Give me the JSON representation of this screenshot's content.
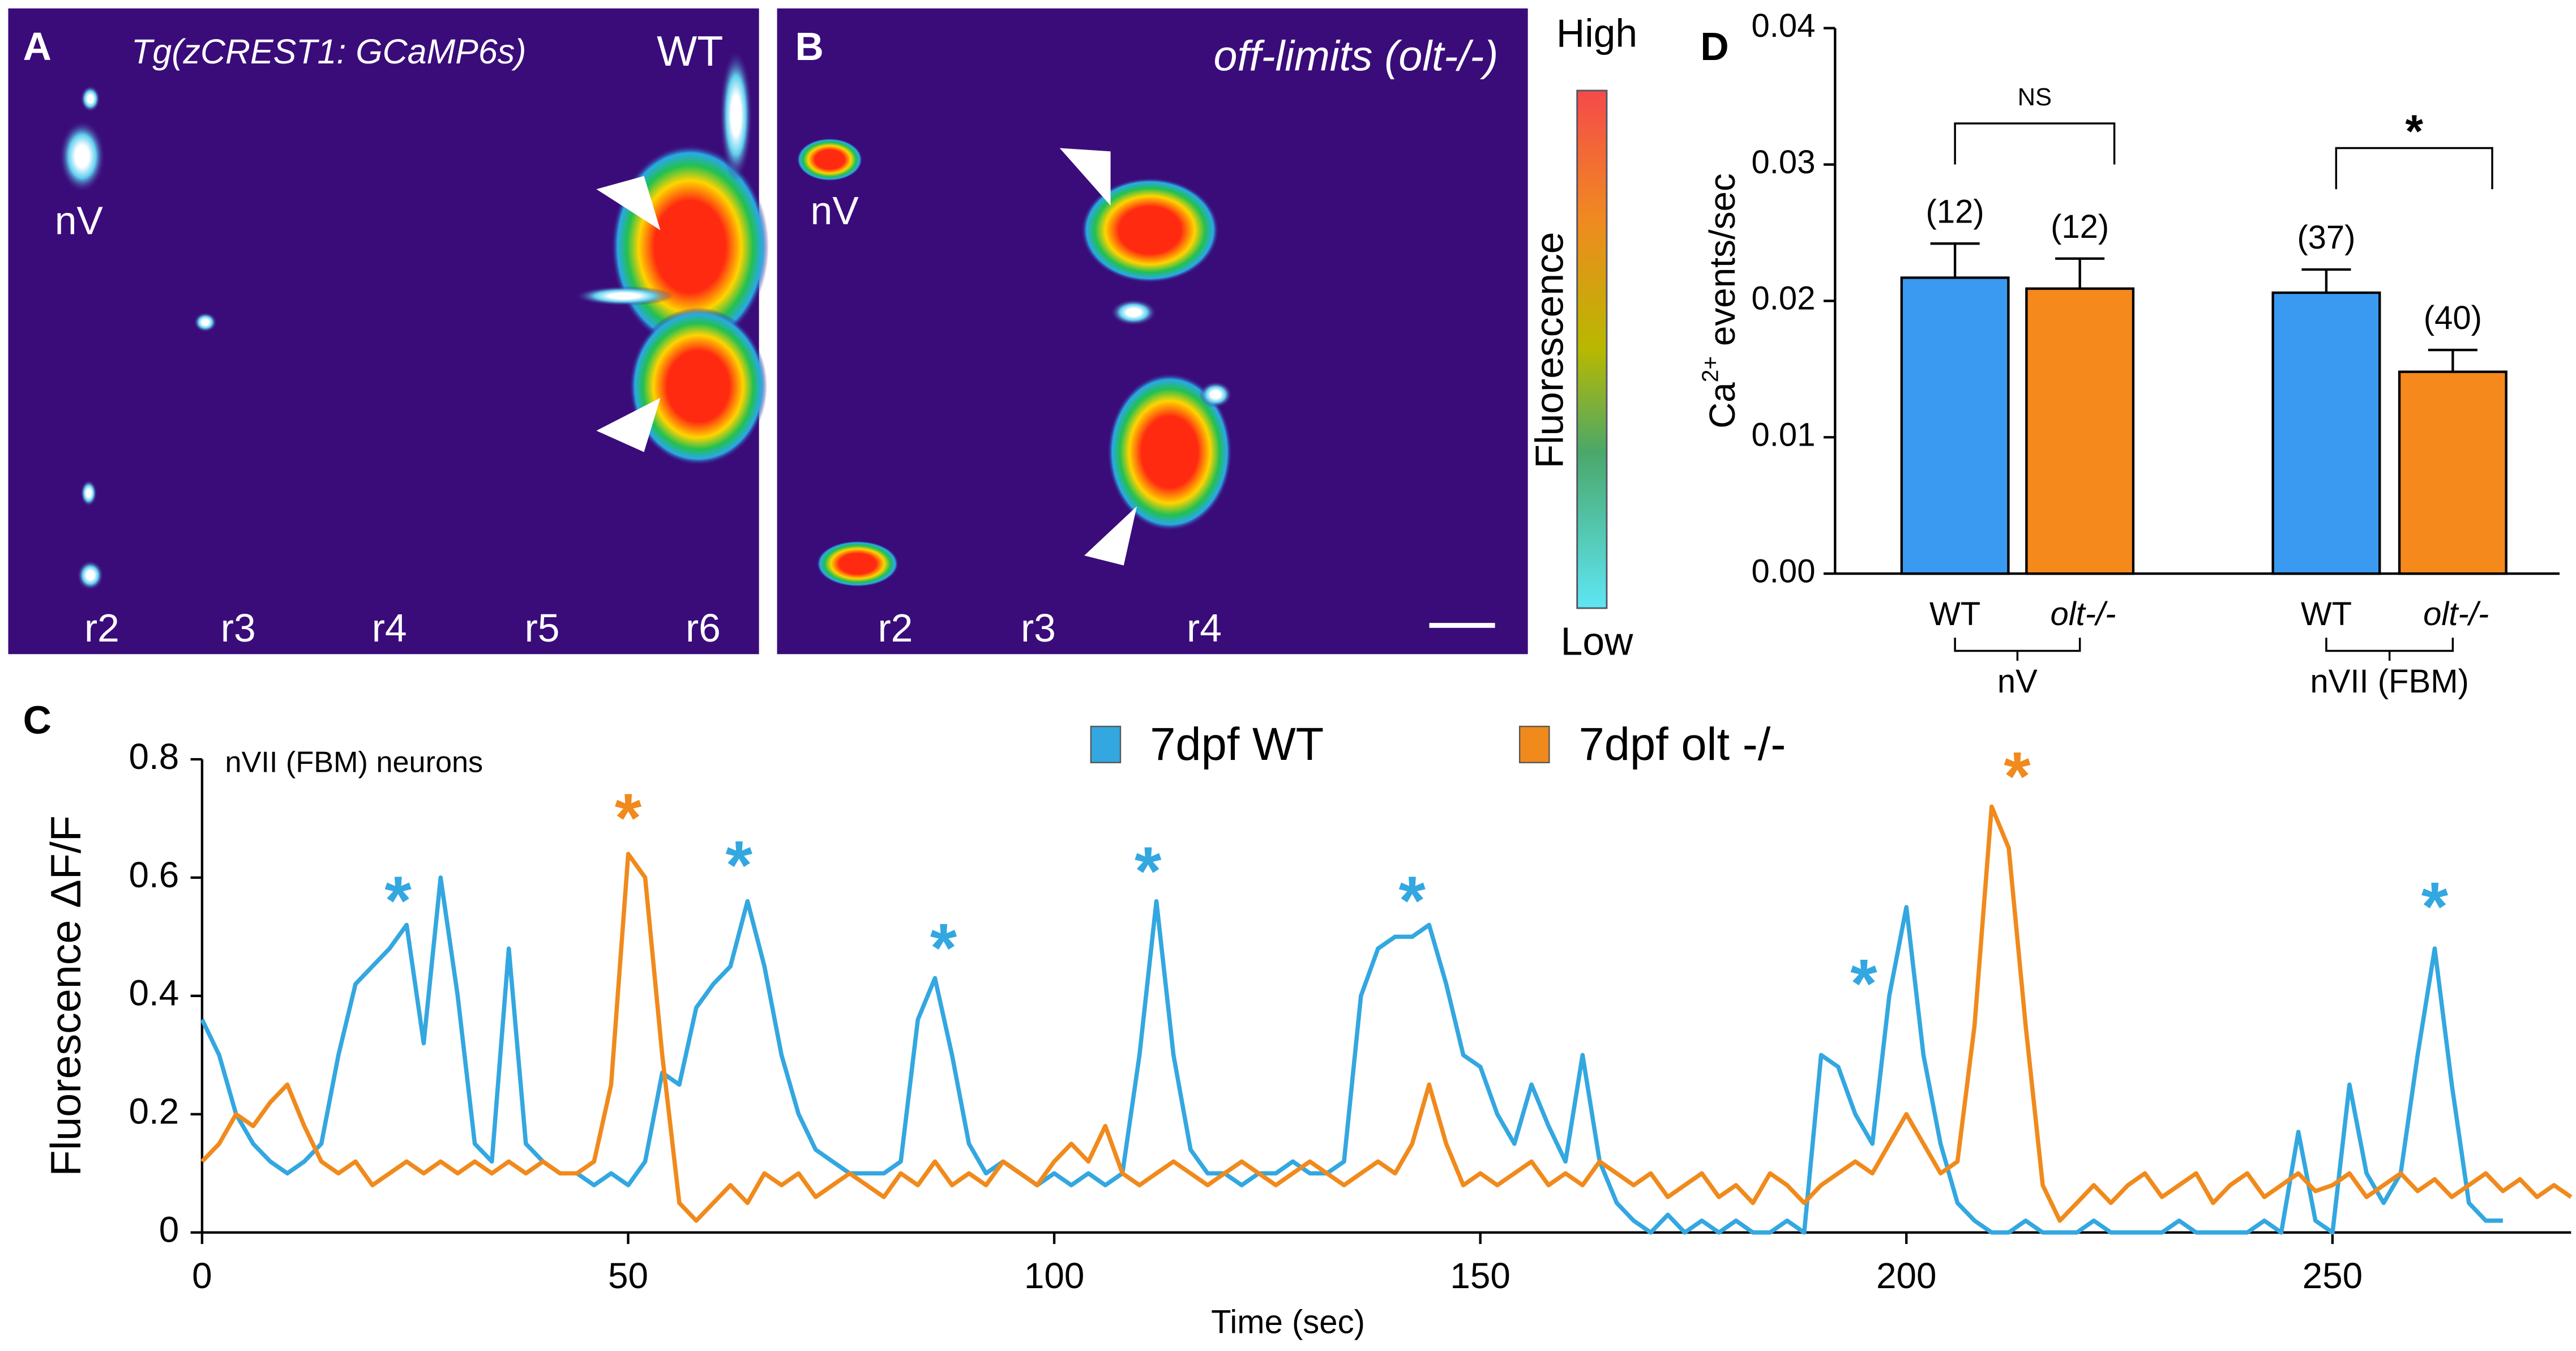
{
  "panel_A": {
    "label": "A",
    "title": "Tg(zCREST1: GCaMP6s)",
    "genotype": "WT",
    "nucleus": "nV",
    "rhombomeres": [
      "r2",
      "r3",
      "r4",
      "r5",
      "r6"
    ]
  },
  "panel_B": {
    "label": "B",
    "title": "off-limits (olt-/-)",
    "nucleus": "nV",
    "rhombomeres": [
      "r2",
      "r3",
      "r4"
    ]
  },
  "colorbar": {
    "high": "High",
    "label": "Fluorescence",
    "low": "Low"
  },
  "chart_data": [
    {
      "type": "line",
      "label": "C",
      "subtitle": "nVII (FBM) neurons",
      "xlabel": "Time (sec)",
      "ylabel": "Fluorescence ΔF/F",
      "xlim": [
        0,
        278
      ],
      "ylim": [
        0,
        0.8
      ],
      "xticks": [
        0,
        50,
        100,
        150,
        200,
        250
      ],
      "yticks": [
        0,
        0.2,
        0.4,
        0.6,
        0.8
      ],
      "legend": "top",
      "x": [
        0,
        2,
        4,
        6,
        8,
        10,
        12,
        14,
        16,
        18,
        20,
        22,
        24,
        26,
        28,
        30,
        32,
        34,
        36,
        38,
        40,
        42,
        44,
        46,
        48,
        50,
        52,
        54,
        56,
        58,
        60,
        62,
        64,
        66,
        68,
        70,
        72,
        74,
        76,
        78,
        80,
        82,
        84,
        86,
        88,
        90,
        92,
        94,
        96,
        98,
        100,
        102,
        104,
        106,
        108,
        110,
        112,
        114,
        116,
        118,
        120,
        122,
        124,
        126,
        128,
        130,
        132,
        134,
        136,
        138,
        140,
        142,
        144,
        146,
        148,
        150,
        152,
        154,
        156,
        158,
        160,
        162,
        164,
        166,
        168,
        170,
        172,
        174,
        176,
        178,
        180,
        182,
        184,
        186,
        188,
        190,
        192,
        194,
        196,
        198,
        200,
        202,
        204,
        206,
        208,
        210,
        212,
        214,
        216,
        218,
        220,
        222,
        224,
        226,
        228,
        230,
        232,
        234,
        236,
        238,
        240,
        242,
        244,
        246,
        248,
        250,
        252,
        254,
        256,
        258,
        260,
        262,
        264,
        266,
        268,
        270,
        272,
        274,
        276,
        278
      ],
      "series": [
        {
          "name": "7dpf WT",
          "color": "#33a7e0",
          "values": [
            0.36,
            0.3,
            0.2,
            0.15,
            0.12,
            0.1,
            0.12,
            0.15,
            0.3,
            0.42,
            0.45,
            0.48,
            0.52,
            0.32,
            0.6,
            0.4,
            0.15,
            0.12,
            0.48,
            0.15,
            0.12,
            0.1,
            0.1,
            0.08,
            0.1,
            0.08,
            0.12,
            0.27,
            0.25,
            0.38,
            0.42,
            0.45,
            0.56,
            0.45,
            0.3,
            0.2,
            0.14,
            0.12,
            0.1,
            0.1,
            0.1,
            0.12,
            0.36,
            0.43,
            0.3,
            0.15,
            0.1,
            0.12,
            0.1,
            0.08,
            0.1,
            0.08,
            0.1,
            0.08,
            0.1,
            0.3,
            0.56,
            0.3,
            0.14,
            0.1,
            0.1,
            0.08,
            0.1,
            0.1,
            0.12,
            0.1,
            0.1,
            0.12,
            0.4,
            0.48,
            0.5,
            0.5,
            0.52,
            0.42,
            0.3,
            0.28,
            0.2,
            0.15,
            0.25,
            0.18,
            0.12,
            0.3,
            0.12,
            0.05,
            0.02,
            0,
            0.03,
            0,
            0.02,
            0,
            0.02,
            0,
            0,
            0.02,
            0,
            0.3,
            0.28,
            0.2,
            0.15,
            0.4,
            0.55,
            0.3,
            0.15,
            0.05,
            0.02,
            0,
            0,
            0.02,
            0,
            0,
            0,
            0.02,
            0,
            0,
            0,
            0,
            0.02,
            0,
            0,
            0,
            0,
            0.02,
            0,
            0.17,
            0.02,
            0,
            0.25,
            0.1,
            0.05,
            0.1,
            0.3,
            0.48,
            0.25,
            0.05,
            0.02,
            0.02,
            null,
            null,
            null,
            null
          ]
        },
        {
          "name": "7dpf olt -/-",
          "color": "#f08a1c",
          "values": [
            0.12,
            0.15,
            0.2,
            0.18,
            0.22,
            0.25,
            0.18,
            0.12,
            0.1,
            0.12,
            0.08,
            0.1,
            0.12,
            0.1,
            0.12,
            0.1,
            0.12,
            0.1,
            0.12,
            0.1,
            0.12,
            0.1,
            0.1,
            0.12,
            0.25,
            0.64,
            0.6,
            0.3,
            0.05,
            0.02,
            0.05,
            0.08,
            0.05,
            0.1,
            0.08,
            0.1,
            0.06,
            0.08,
            0.1,
            0.08,
            0.06,
            0.1,
            0.08,
            0.12,
            0.08,
            0.1,
            0.08,
            0.12,
            0.1,
            0.08,
            0.12,
            0.15,
            0.12,
            0.18,
            0.1,
            0.08,
            0.1,
            0.12,
            0.1,
            0.08,
            0.1,
            0.12,
            0.1,
            0.08,
            0.1,
            0.12,
            0.1,
            0.08,
            0.1,
            0.12,
            0.1,
            0.15,
            0.25,
            0.15,
            0.08,
            0.1,
            0.08,
            0.1,
            0.12,
            0.08,
            0.1,
            0.08,
            0.12,
            0.1,
            0.08,
            0.1,
            0.06,
            0.08,
            0.1,
            0.06,
            0.08,
            0.05,
            0.1,
            0.08,
            0.05,
            0.08,
            0.1,
            0.12,
            0.1,
            0.15,
            0.2,
            0.15,
            0.1,
            0.12,
            0.35,
            0.72,
            0.65,
            0.35,
            0.08,
            0.02,
            0.05,
            0.08,
            0.05,
            0.08,
            0.1,
            0.06,
            0.08,
            0.1,
            0.05,
            0.08,
            0.1,
            0.06,
            0.08,
            0.1,
            0.07,
            0.08,
            0.1,
            0.06,
            0.08,
            0.1,
            0.07,
            0.09,
            0.06,
            0.08,
            0.1,
            0.07,
            0.09,
            0.06,
            0.08,
            0.06
          ]
        }
      ],
      "annotations": [
        {
          "text": "*",
          "x": 23,
          "y": 0.58,
          "color": "#33a7e0"
        },
        {
          "text": "*",
          "x": 63,
          "y": 0.64,
          "color": "#33a7e0"
        },
        {
          "text": "*",
          "x": 87,
          "y": 0.5,
          "color": "#33a7e0"
        },
        {
          "text": "*",
          "x": 111,
          "y": 0.63,
          "color": "#33a7e0"
        },
        {
          "text": "*",
          "x": 142,
          "y": 0.58,
          "color": "#33a7e0"
        },
        {
          "text": "*",
          "x": 195,
          "y": 0.44,
          "color": "#33a7e0"
        },
        {
          "text": "*",
          "x": 262,
          "y": 0.57,
          "color": "#33a7e0"
        },
        {
          "text": "*",
          "x": 50,
          "y": 0.72,
          "color": "#f08a1c"
        },
        {
          "text": "*",
          "x": 213,
          "y": 0.79,
          "color": "#f08a1c"
        }
      ]
    },
    {
      "type": "bar",
      "label": "D",
      "ylabel": {
        "base": "Ca",
        "sup": "2+",
        "rest": " events/sec"
      },
      "categories": [
        "WT",
        "olt-/-",
        "WT",
        "olt-/-"
      ],
      "groups": [
        "nV",
        "nVII (FBM)"
      ],
      "values": [
        0.0217,
        0.0209,
        0.0206,
        0.0148
      ],
      "errors": [
        0.0025,
        0.0022,
        0.0017,
        0.0016
      ],
      "n_labels": [
        "(12)",
        "(12)",
        "(37)",
        "(40)"
      ],
      "colors": [
        "#3a9af1",
        "#f5891c",
        "#3a9af1",
        "#f5891c"
      ],
      "significance": [
        "NS",
        "*"
      ],
      "ylim": [
        0,
        0.04
      ],
      "yticks": [
        {
          "value": 0,
          "label": "0.00"
        },
        {
          "value": 0.01,
          "label": "0.01"
        },
        {
          "value": 0.02,
          "label": "0.02"
        },
        {
          "value": 0.03,
          "label": "0.03"
        },
        {
          "value": 0.04,
          "label": "0.04"
        }
      ]
    }
  ]
}
